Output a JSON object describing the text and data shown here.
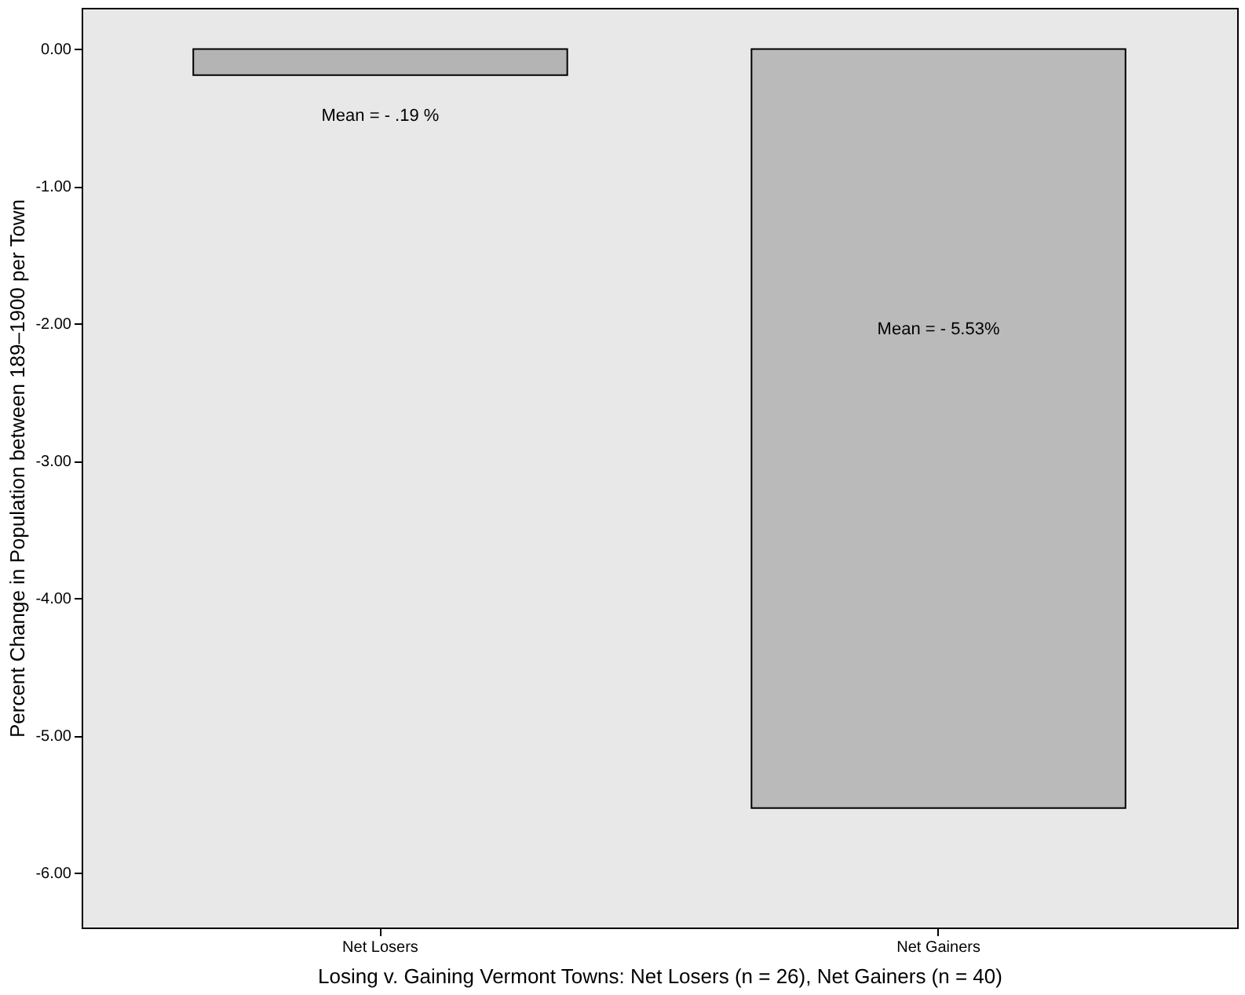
{
  "chart_data": {
    "type": "bar",
    "xlabel": "Losing v. Gaining Vermont Towns: Net Losers (n = 26), Net Gainers (n = 40)",
    "ylabel": "Percent Change in Population between 189–1900 per Town",
    "categories": [
      "Net Losers",
      "Net Gainers"
    ],
    "values": [
      -0.19,
      -5.53
    ],
    "value_labels": [
      "Mean = - .19 %",
      "Mean = - 5.53%"
    ],
    "colors": [
      "#b4b4b4",
      "#bababa"
    ],
    "ylim": [
      -6.4,
      0.3
    ],
    "yticks": [
      {
        "value": 0,
        "label": "0.00"
      },
      {
        "value": -1,
        "label": "-1.00"
      },
      {
        "value": -2,
        "label": "-2.00"
      },
      {
        "value": -3,
        "label": "-3.00"
      },
      {
        "value": -4,
        "label": "-4.00"
      },
      {
        "value": -5,
        "label": "-5.00"
      },
      {
        "value": -6,
        "label": "-6.00"
      }
    ],
    "grid": false
  }
}
